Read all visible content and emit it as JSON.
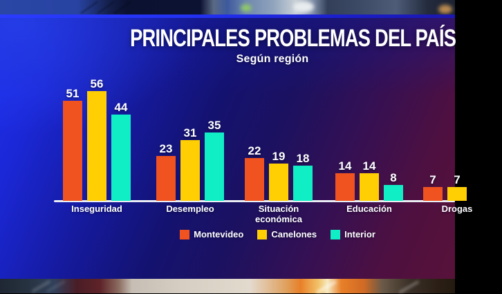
{
  "header": {
    "title": "PRINCIPALES PROBLEMAS DEL PAÍS",
    "subtitle": "Según región"
  },
  "chart_data": {
    "type": "bar",
    "title": "PRINCIPALES PROBLEMAS DEL PAÍS",
    "subtitle": "Según región",
    "categories": [
      "Inseguridad",
      "Desempleo",
      "Situación económica",
      "Educación",
      "Drogas"
    ],
    "series": [
      {
        "name": "Montevideo",
        "color": "#F0531F",
        "values": [
          51,
          23,
          22,
          14,
          7
        ]
      },
      {
        "name": "Canelones",
        "color": "#FFCF04",
        "values": [
          56,
          31,
          19,
          14,
          7
        ]
      },
      {
        "name": "Interior",
        "color": "#10EEC6",
        "values": [
          44,
          35,
          18,
          8,
          null
        ]
      }
    ],
    "xlabel": "",
    "ylabel": "",
    "ylim": [
      0,
      60
    ],
    "grid": false,
    "legend_position": "bottom",
    "value_labels": true
  },
  "colors": {
    "axis": "#EAEEF4",
    "text": "#FFFFFF",
    "background_blue": "#1E30EE",
    "background_maroon": "#581238"
  }
}
